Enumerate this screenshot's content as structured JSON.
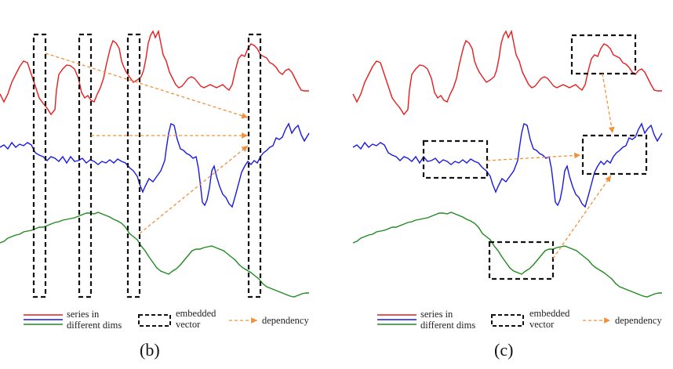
{
  "panels": [
    {
      "caption": "(b)",
      "legend": {
        "series_label_line1": "series in",
        "series_label_line2": "different dims",
        "embedded_label_line1": "embedded",
        "embedded_label_line2": "vector",
        "dependency_label": "dependency"
      }
    },
    {
      "caption": "(c)",
      "legend": {
        "series_label_line1": "series in",
        "series_label_line2": "different dims",
        "embedded_label_line1": "embedded",
        "embedded_label_line2": "vector",
        "dependency_label": "dependency"
      }
    }
  ],
  "colors": {
    "red_series": "#e81c1c",
    "blue_series": "#1a1adf",
    "green_series": "#1e8a1e",
    "dependency_arrow": "#f0903a",
    "embedded_box": "#111111"
  }
}
